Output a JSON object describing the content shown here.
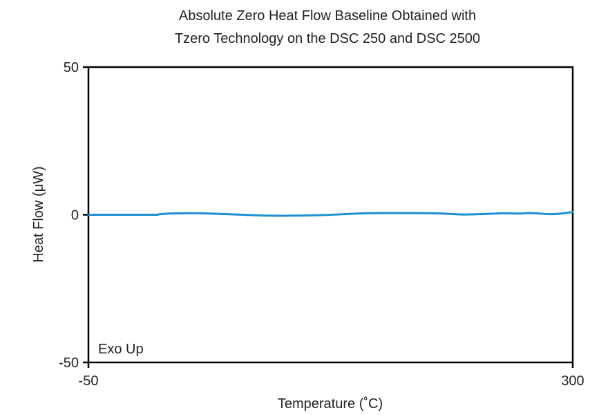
{
  "chart_data": {
    "type": "line",
    "title_lines": [
      "Absolute Zero Heat Flow Baseline Obtained with",
      "Tzero Technology on the DSC 250 and DSC 2500"
    ],
    "xlabel": "Temperature (˚C)",
    "ylabel": "Heat Flow (μW)",
    "xlim": [
      -50,
      300
    ],
    "ylim": [
      -50,
      50
    ],
    "x_ticks": [
      "-50",
      "300"
    ],
    "y_ticks": [
      "50",
      "0",
      "-50"
    ],
    "annotation": "Exo Up",
    "grid": false,
    "colors": {
      "line": "#1b8fd2",
      "axis": "#000000"
    },
    "series": [
      {
        "x": [
          -50,
          -30,
          -2,
          0,
          8,
          30,
          50,
          80,
          98,
          120,
          150,
          170,
          200,
          220,
          232,
          250,
          262,
          270,
          285,
          300
        ],
        "y": [
          0,
          0,
          0,
          0.1,
          0.4,
          0.5,
          0.2,
          -0.3,
          -0.3,
          -0.1,
          0.5,
          0.6,
          0.5,
          0.1,
          0.2,
          0.5,
          0.4,
          0.6,
          0.2,
          0.9
        ]
      }
    ]
  }
}
